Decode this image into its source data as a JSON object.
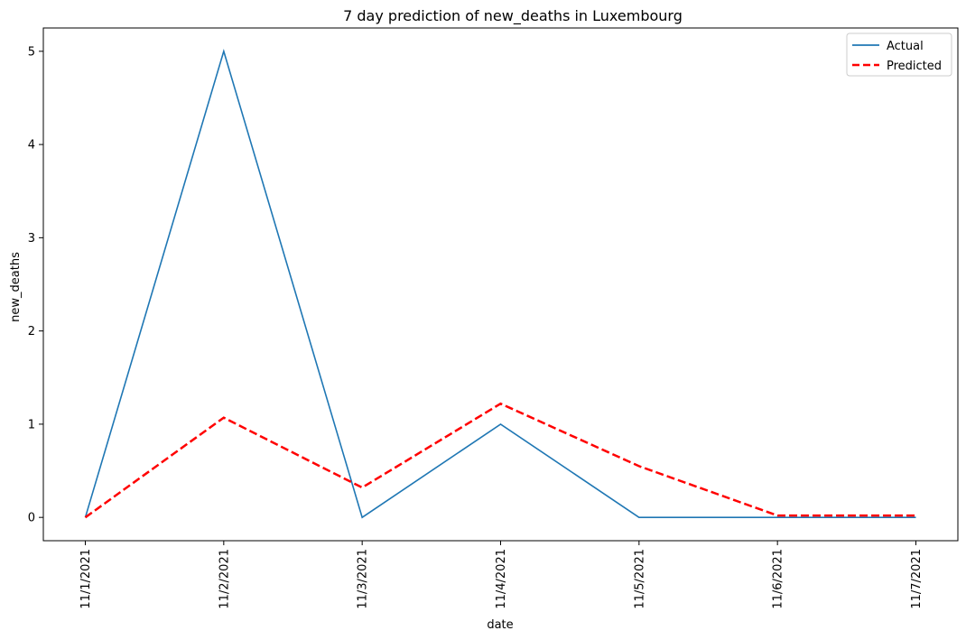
{
  "chart_data": {
    "type": "line",
    "title": "7 day prediction of new_deaths in Luxembourg",
    "xlabel": "date",
    "ylabel": "new_deaths",
    "x": [
      "11/1/2021",
      "11/2/2021",
      "11/3/2021",
      "11/4/2021",
      "11/5/2021",
      "11/6/2021",
      "11/7/2021"
    ],
    "ylim": [
      -0.25,
      5.25
    ],
    "yticks": [
      "0",
      "1",
      "2",
      "3",
      "4",
      "5"
    ],
    "grid": false,
    "legend_position": "top-right",
    "series": [
      {
        "name": "Actual",
        "values": [
          0,
          5,
          0,
          1,
          0,
          0,
          0
        ],
        "color": "#1f77b4",
        "style": "solid"
      },
      {
        "name": "Predicted",
        "values": [
          0,
          1.07,
          0.32,
          1.22,
          0.55,
          0.02,
          0.02
        ],
        "color": "#ff0000",
        "style": "dashed"
      }
    ]
  }
}
